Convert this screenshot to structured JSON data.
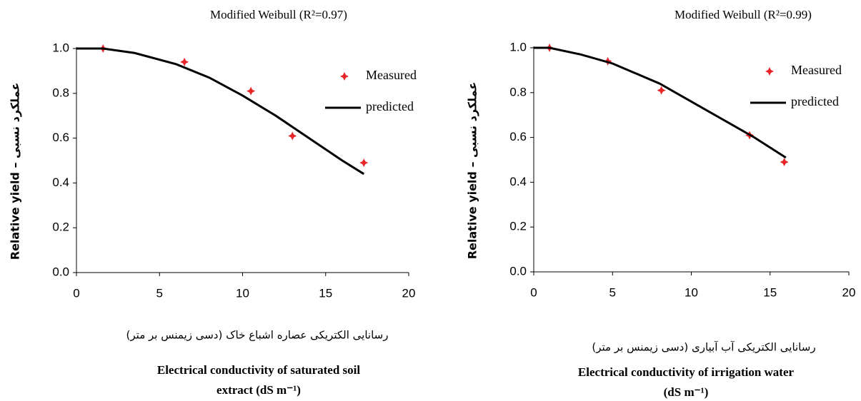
{
  "chart_data": [
    {
      "type": "scatter",
      "title": "Modified Weibull  (R²=0.97)",
      "y_label": "Relative yield – عملکرد نسبی",
      "x_label_fa": "رسانایی الکتریکی عصاره اشباع خاک (دسی زیمنس بر متر)",
      "x_label": [
        "Electrical conductivity of saturated soil",
        "extract (dS m⁻¹)"
      ],
      "xlim": [
        0,
        20
      ],
      "xticks": [
        0,
        5,
        10,
        15,
        20
      ],
      "ylim": [
        0,
        1
      ],
      "yticks": [
        {
          "value": 0,
          "label": "0.0"
        },
        {
          "value": 0.2,
          "label": "0.2"
        },
        {
          "value": 0.4,
          "label": "0.4"
        },
        {
          "value": 0.6,
          "label": "0.6"
        },
        {
          "value": 0.8,
          "label": "0.8"
        },
        {
          "value": 1,
          "label": "1.0"
        }
      ],
      "legend": "upper right",
      "series": [
        {
          "name": "Measured",
          "mode": "markers",
          "color": "#e8262a",
          "x": [
            1.6,
            6.5,
            10.5,
            13,
            17.3
          ],
          "values": [
            1.0,
            0.94,
            0.81,
            0.61,
            0.49
          ]
        },
        {
          "name": "predicted",
          "mode": "line",
          "color": "#000000",
          "x": [
            0,
            1.6,
            3.5,
            6,
            8,
            10,
            12,
            14,
            16,
            17.3
          ],
          "values": [
            1,
            1,
            0.98,
            0.93,
            0.87,
            0.79,
            0.7,
            0.6,
            0.5,
            0.44
          ]
        }
      ]
    },
    {
      "type": "scatter",
      "title": "Modified Weibull  (R²=0.99)",
      "y_label": "Relative yield – عملکرد نسبی",
      "x_label_fa": "رسانایی الکتریکی آب آبیاری (دسی زیمنس بر متر)",
      "x_label": [
        "Electrical conductivity of  irrigation water",
        "(dS m⁻¹)"
      ],
      "xlim": [
        0,
        20
      ],
      "xticks": [
        0,
        5,
        10,
        15,
        20
      ],
      "ylim": [
        0,
        1
      ],
      "yticks": [
        {
          "value": 0,
          "label": "0.0"
        },
        {
          "value": 0.2,
          "label": "0.2"
        },
        {
          "value": 0.4,
          "label": "0.4"
        },
        {
          "value": 0.6,
          "label": "0.6"
        },
        {
          "value": 0.8,
          "label": "0.8"
        },
        {
          "value": 1,
          "label": "1.0"
        }
      ],
      "legend": "upper right",
      "series": [
        {
          "name": "Measured",
          "mode": "markers",
          "color": "#e8262a",
          "x": [
            1,
            4.7,
            8.1,
            13.7,
            15.9
          ],
          "values": [
            1.0,
            0.94,
            0.81,
            0.61,
            0.49
          ]
        },
        {
          "name": "predicted",
          "mode": "line",
          "color": "#000000",
          "x": [
            0,
            1,
            3,
            5,
            8,
            11,
            14,
            16
          ],
          "values": [
            1,
            1,
            0.97,
            0.93,
            0.84,
            0.72,
            0.6,
            0.51
          ]
        }
      ]
    }
  ]
}
